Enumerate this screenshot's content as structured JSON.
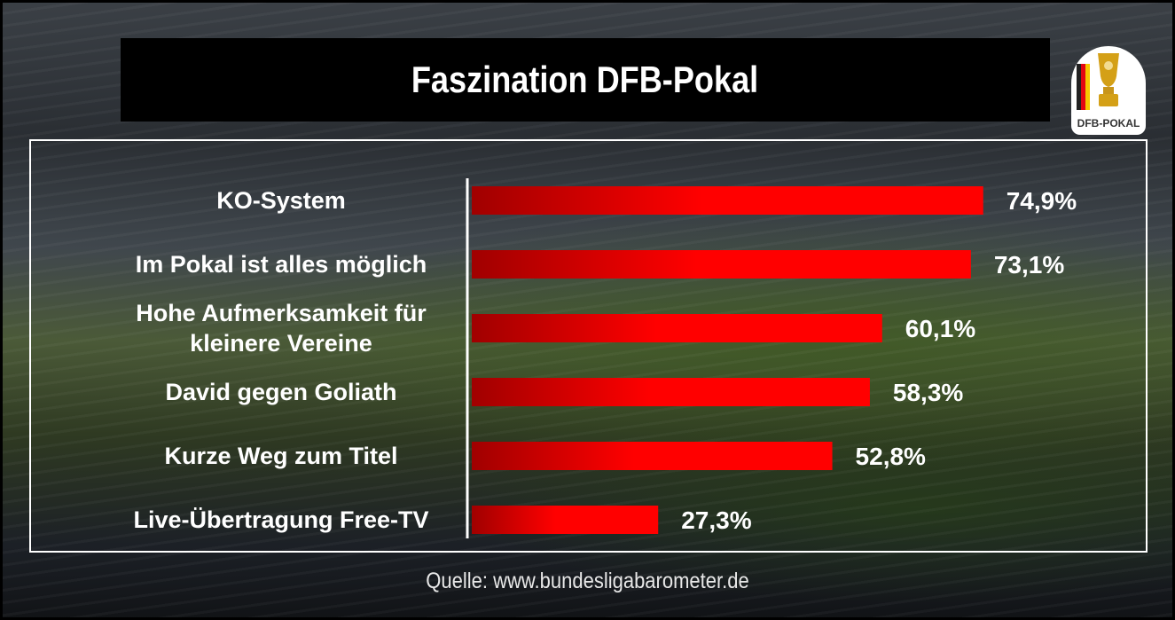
{
  "title": "Faszination DFB-Pokal",
  "logo": {
    "icon": "dfb-pokal-trophy-icon",
    "text": "DFB-POKAL"
  },
  "source": "Quelle: www.bundesligabarometer.de",
  "chart_data": {
    "type": "bar",
    "orientation": "horizontal",
    "categories": [
      [
        "KO-System"
      ],
      [
        "Im Pokal ist alles möglich"
      ],
      [
        "Hohe Aufmerksamkeit für",
        "kleinere Vereine"
      ],
      [
        "David gegen Goliath"
      ],
      [
        "Kurze Weg zum Titel"
      ],
      [
        "Live-Übertragung Free-TV"
      ]
    ],
    "values": [
      74.9,
      73.1,
      60.1,
      58.3,
      52.8,
      27.3
    ],
    "value_labels": [
      "74,9%",
      "73,1%",
      "60,1%",
      "58,3%",
      "52,8%",
      "27,3%"
    ],
    "unit": "%",
    "xlim": [
      0,
      100
    ],
    "bar_color": "#ff0000",
    "bar_color_dark": "#b00000",
    "grid": false,
    "legend": "none"
  }
}
